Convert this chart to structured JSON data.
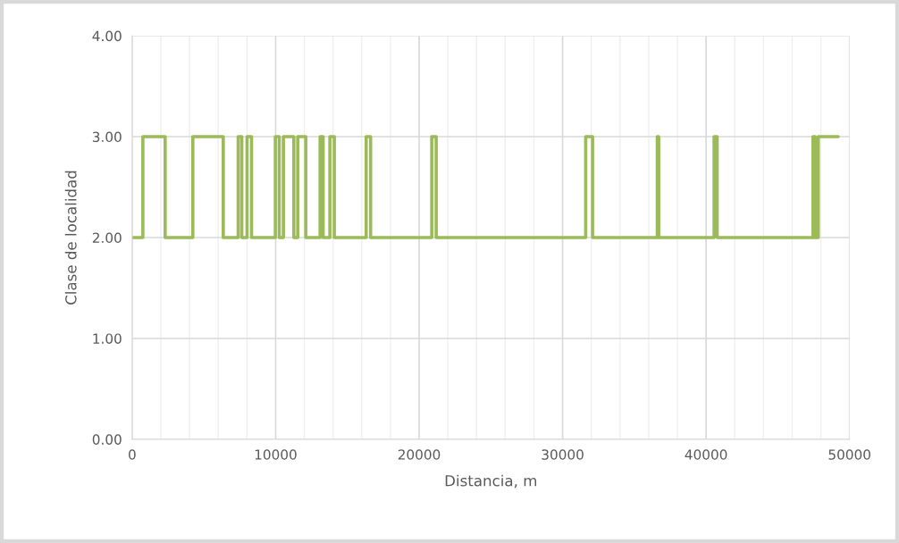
{
  "chart_data": {
    "type": "step",
    "xlabel": "Distancia, m",
    "ylabel": "Clase de localidad",
    "series": [
      {
        "color": "#9bbb59",
        "x": [
          0,
          747,
          2300,
          4230,
          6350,
          7390,
          7640,
          8010,
          8320,
          9980,
          10250,
          10540,
          11270,
          11540,
          12100,
          13100,
          13310,
          13780,
          14090,
          16310,
          16620,
          20880,
          21190,
          31610,
          32090,
          36600,
          36700,
          40560,
          40770,
          47450,
          47600,
          47820,
          49210
        ],
        "values": [
          2,
          3,
          2,
          3,
          2,
          3,
          2,
          3,
          2,
          3,
          2,
          3,
          2,
          3,
          2,
          3,
          2,
          3,
          2,
          3,
          2,
          3,
          2,
          3,
          2,
          3,
          2,
          3,
          2,
          3,
          2,
          3,
          3
        ]
      }
    ],
    "xlim": [
      0,
      50000
    ],
    "ylim": [
      0,
      4
    ],
    "xticks": [
      0,
      {
        "value": 2000,
        "label": null
      },
      {
        "value": 4000,
        "label": null
      },
      {
        "value": 6000,
        "label": null
      },
      {
        "value": 8000,
        "label": null
      },
      10000,
      {
        "value": 12000,
        "label": null
      },
      {
        "value": 14000,
        "label": null
      },
      {
        "value": 16000,
        "label": null
      },
      {
        "value": 18000,
        "label": null
      },
      20000,
      {
        "value": 22000,
        "label": null
      },
      {
        "value": 24000,
        "label": null
      },
      {
        "value": 26000,
        "label": null
      },
      {
        "value": 28000,
        "label": null
      },
      30000,
      {
        "value": 32000,
        "label": null
      },
      {
        "value": 34000,
        "label": null
      },
      {
        "value": 36000,
        "label": null
      },
      {
        "value": 38000,
        "label": null
      },
      40000,
      {
        "value": 42000,
        "label": null
      },
      {
        "value": 44000,
        "label": null
      },
      {
        "value": 46000,
        "label": null
      },
      {
        "value": 48000,
        "label": null
      },
      50000
    ],
    "yticks": [
      {
        "value": 0,
        "label": "0.00"
      },
      {
        "value": 1,
        "label": "1.00"
      },
      {
        "value": 2,
        "label": "2.00"
      },
      {
        "value": 3,
        "label": "3.00"
      },
      {
        "value": 4,
        "label": "4.00"
      }
    ],
    "grid": true,
    "line_style": "solid"
  }
}
